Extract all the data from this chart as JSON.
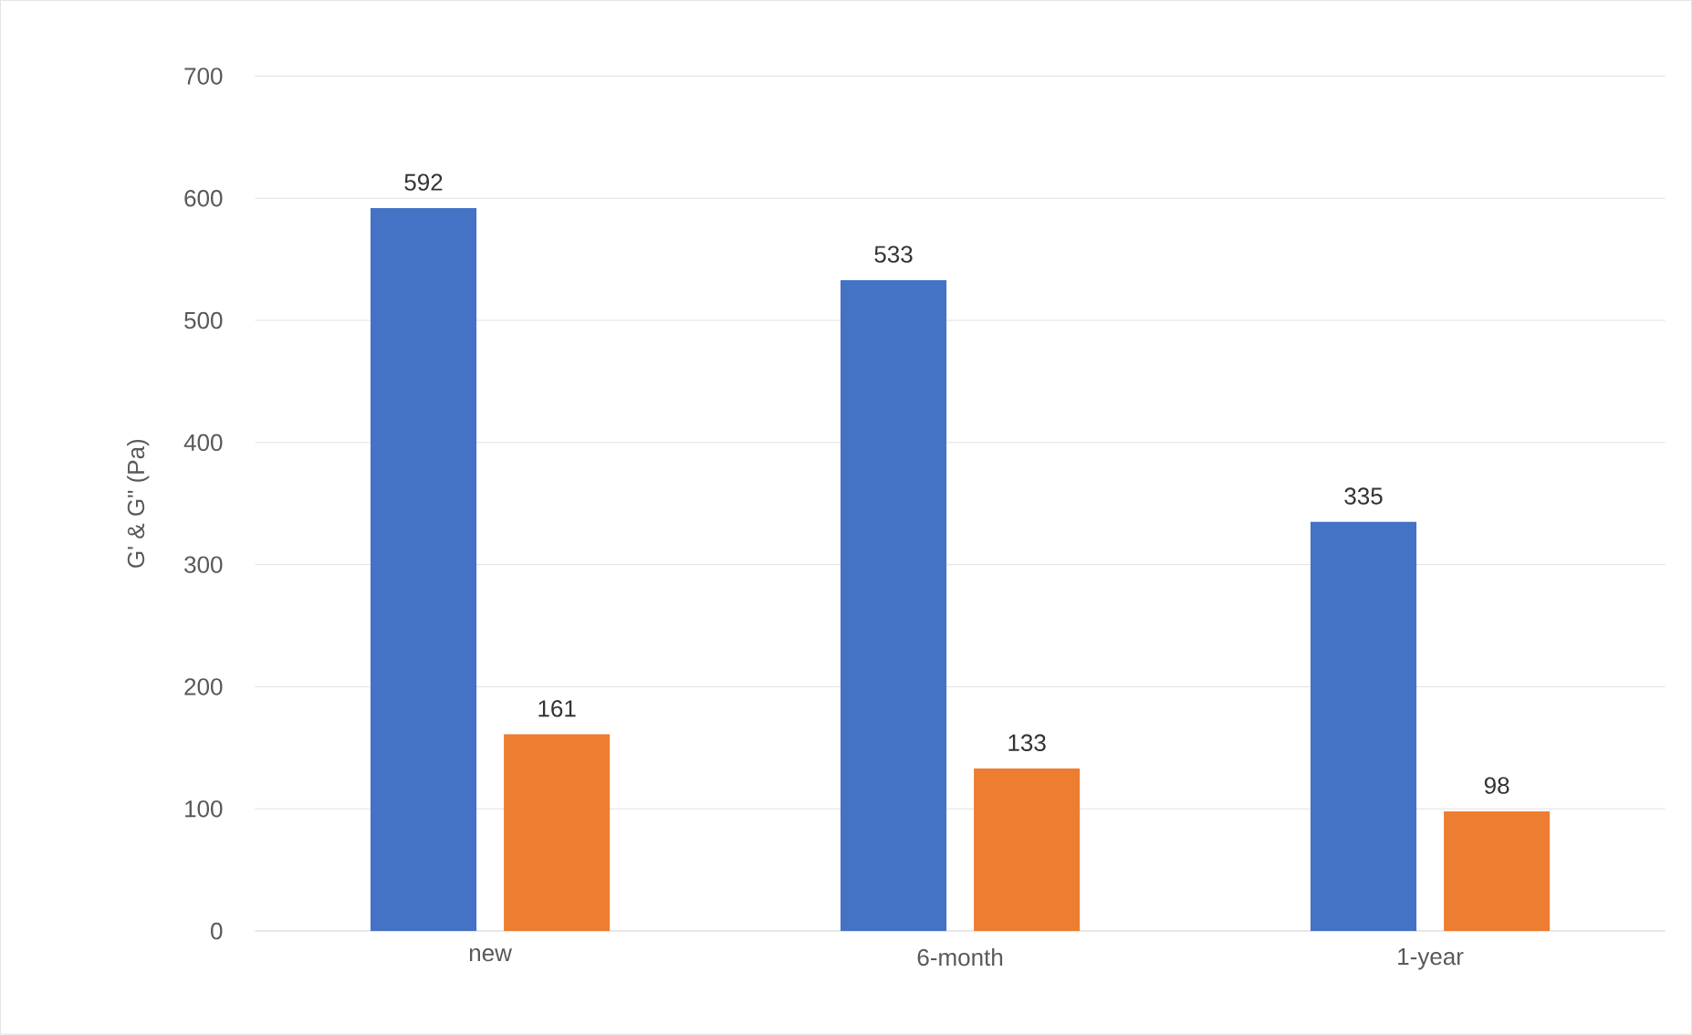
{
  "chart_data": {
    "type": "bar",
    "ylabel": "G' & G\" (Pa)",
    "categories": [
      "new",
      "6-month",
      "1-year"
    ],
    "series": [
      {
        "color": "#4472c4",
        "values": [
          592,
          533,
          335
        ]
      },
      {
        "color": "#ed7d31",
        "values": [
          161,
          133,
          98
        ]
      }
    ],
    "ylim": [
      0,
      700
    ],
    "yticks": [
      0,
      100,
      200,
      300,
      400,
      500,
      600,
      700
    ],
    "grid": "y",
    "legend": false,
    "data_labels": true
  }
}
